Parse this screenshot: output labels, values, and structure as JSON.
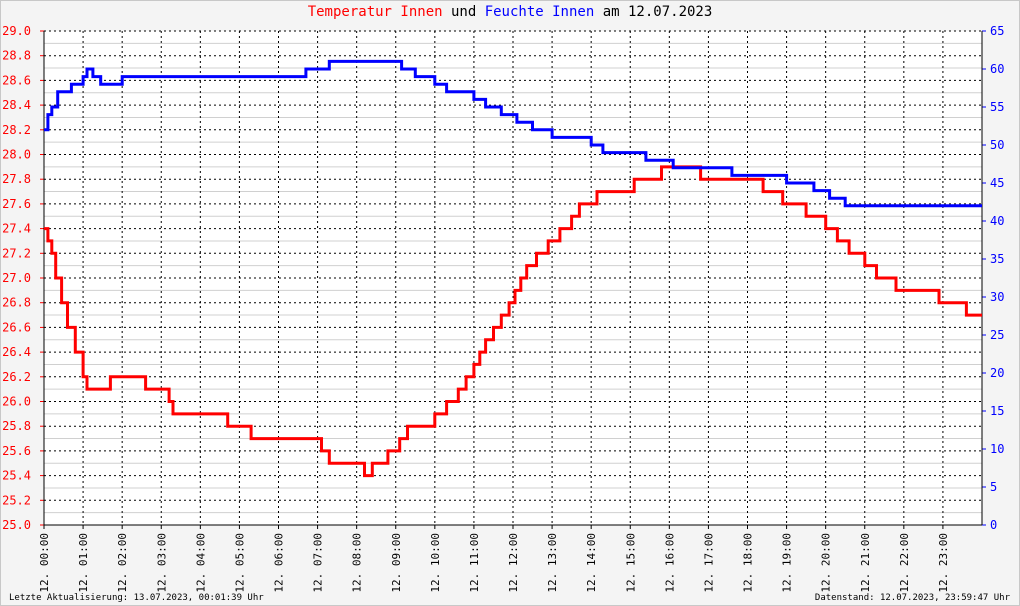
{
  "title": {
    "part1": "Temperatur Innen",
    "part2": " und ",
    "part3": "Feuchte Innen",
    "part4": " am 12.07.2023"
  },
  "footer": {
    "left": "Letzte Aktualisierung: 13.07.2023, 00:01:39 Uhr",
    "right": "Datenstand: 12.07.2023, 23:59:47 Uhr"
  },
  "colors": {
    "temperature": "#ff0000",
    "humidity": "#0000ff",
    "grid": "#000000",
    "background": "#f4f4f4"
  },
  "chart_data": {
    "type": "line",
    "x_unit": "hours",
    "x_range": [
      0,
      24
    ],
    "x_tick_labels": [
      "12. 00:00",
      "12. 01:00",
      "12. 02:00",
      "12. 03:00",
      "12. 04:00",
      "12. 05:00",
      "12. 06:00",
      "12. 07:00",
      "12. 08:00",
      "12. 09:00",
      "12. 10:00",
      "12. 11:00",
      "12. 12:00",
      "12. 13:00",
      "12. 14:00",
      "12. 15:00",
      "12. 16:00",
      "12. 17:00",
      "12. 18:00",
      "12. 19:00",
      "12. 20:00",
      "12. 21:00",
      "12. 22:00",
      "12. 23:00"
    ],
    "y_left": {
      "range": [
        25.0,
        29.0
      ],
      "ticks": [
        "25.0",
        "25.2",
        "25.4",
        "25.6",
        "25.8",
        "26.0",
        "26.2",
        "26.4",
        "26.6",
        "26.8",
        "27.0",
        "27.2",
        "27.4",
        "27.6",
        "27.8",
        "28.0",
        "28.2",
        "28.4",
        "28.6",
        "28.8",
        "29.0"
      ]
    },
    "y_right": {
      "range": [
        0,
        65
      ],
      "ticks": [
        "0",
        "5",
        "10",
        "15",
        "20",
        "25",
        "30",
        "35",
        "40",
        "45",
        "50",
        "55",
        "60",
        "65"
      ]
    },
    "grid": true,
    "series": [
      {
        "name": "Temperatur Innen",
        "axis": "left",
        "color": "#ff0000",
        "points": [
          [
            0.0,
            27.4
          ],
          [
            0.1,
            27.3
          ],
          [
            0.2,
            27.2
          ],
          [
            0.3,
            27.0
          ],
          [
            0.45,
            26.8
          ],
          [
            0.6,
            26.6
          ],
          [
            0.8,
            26.4
          ],
          [
            1.0,
            26.2
          ],
          [
            1.1,
            26.1
          ],
          [
            1.6,
            26.1
          ],
          [
            1.7,
            26.2
          ],
          [
            2.6,
            26.2
          ],
          [
            2.6,
            26.1
          ],
          [
            3.1,
            26.1
          ],
          [
            3.2,
            26.0
          ],
          [
            3.3,
            25.9
          ],
          [
            4.7,
            25.9
          ],
          [
            4.7,
            25.8
          ],
          [
            5.3,
            25.8
          ],
          [
            5.3,
            25.7
          ],
          [
            7.0,
            25.7
          ],
          [
            7.1,
            25.6
          ],
          [
            7.3,
            25.5
          ],
          [
            7.9,
            25.5
          ],
          [
            8.2,
            25.4
          ],
          [
            8.4,
            25.5
          ],
          [
            8.8,
            25.6
          ],
          [
            9.1,
            25.7
          ],
          [
            9.3,
            25.8
          ],
          [
            9.8,
            25.8
          ],
          [
            10.0,
            25.9
          ],
          [
            10.3,
            26.0
          ],
          [
            10.6,
            26.1
          ],
          [
            10.8,
            26.2
          ],
          [
            11.0,
            26.3
          ],
          [
            11.15,
            26.4
          ],
          [
            11.3,
            26.5
          ],
          [
            11.5,
            26.6
          ],
          [
            11.7,
            26.7
          ],
          [
            11.9,
            26.8
          ],
          [
            12.05,
            26.9
          ],
          [
            12.2,
            27.0
          ],
          [
            12.35,
            27.1
          ],
          [
            12.6,
            27.2
          ],
          [
            12.9,
            27.3
          ],
          [
            13.2,
            27.4
          ],
          [
            13.5,
            27.5
          ],
          [
            13.7,
            27.6
          ],
          [
            14.15,
            27.7
          ],
          [
            14.9,
            27.7
          ],
          [
            15.1,
            27.8
          ],
          [
            15.7,
            27.8
          ],
          [
            15.8,
            27.9
          ],
          [
            16.8,
            27.9
          ],
          [
            16.8,
            27.8
          ],
          [
            18.2,
            27.8
          ],
          [
            18.4,
            27.7
          ],
          [
            18.8,
            27.7
          ],
          [
            18.9,
            27.6
          ],
          [
            19.3,
            27.6
          ],
          [
            19.5,
            27.5
          ],
          [
            19.9,
            27.5
          ],
          [
            20.0,
            27.4
          ],
          [
            20.3,
            27.3
          ],
          [
            20.5,
            27.3
          ],
          [
            20.6,
            27.2
          ],
          [
            20.9,
            27.2
          ],
          [
            21.0,
            27.1
          ],
          [
            21.2,
            27.1
          ],
          [
            21.3,
            27.0
          ],
          [
            21.7,
            27.0
          ],
          [
            21.8,
            26.9
          ],
          [
            22.8,
            26.9
          ],
          [
            22.9,
            26.8
          ],
          [
            23.5,
            26.8
          ],
          [
            23.6,
            26.7
          ],
          [
            24.0,
            26.7
          ]
        ]
      },
      {
        "name": "Feuchte Innen",
        "axis": "right",
        "color": "#0000ff",
        "points": [
          [
            0.0,
            52
          ],
          [
            0.1,
            54
          ],
          [
            0.2,
            55
          ],
          [
            0.35,
            57
          ],
          [
            0.6,
            57
          ],
          [
            0.7,
            58
          ],
          [
            0.95,
            58
          ],
          [
            1.0,
            59
          ],
          [
            1.1,
            60
          ],
          [
            1.25,
            59
          ],
          [
            1.45,
            58
          ],
          [
            1.9,
            58
          ],
          [
            2.0,
            59
          ],
          [
            6.6,
            59
          ],
          [
            6.7,
            60
          ],
          [
            7.2,
            60
          ],
          [
            7.3,
            61
          ],
          [
            9.0,
            61
          ],
          [
            9.15,
            60
          ],
          [
            9.5,
            59
          ],
          [
            10.0,
            58
          ],
          [
            10.3,
            57
          ],
          [
            10.9,
            57
          ],
          [
            11.0,
            56
          ],
          [
            11.3,
            55
          ],
          [
            11.7,
            54
          ],
          [
            12.1,
            53
          ],
          [
            12.5,
            52
          ],
          [
            13.0,
            51
          ],
          [
            13.8,
            51
          ],
          [
            14.0,
            50
          ],
          [
            14.3,
            49
          ],
          [
            15.2,
            49
          ],
          [
            15.4,
            48
          ],
          [
            16.0,
            48
          ],
          [
            16.1,
            47
          ],
          [
            17.5,
            47
          ],
          [
            17.6,
            46
          ],
          [
            18.9,
            46
          ],
          [
            19.0,
            45
          ],
          [
            19.6,
            45
          ],
          [
            19.7,
            44
          ],
          [
            20.0,
            44
          ],
          [
            20.1,
            43
          ],
          [
            20.4,
            43
          ],
          [
            20.5,
            42
          ],
          [
            24.0,
            42
          ]
        ]
      }
    ]
  }
}
